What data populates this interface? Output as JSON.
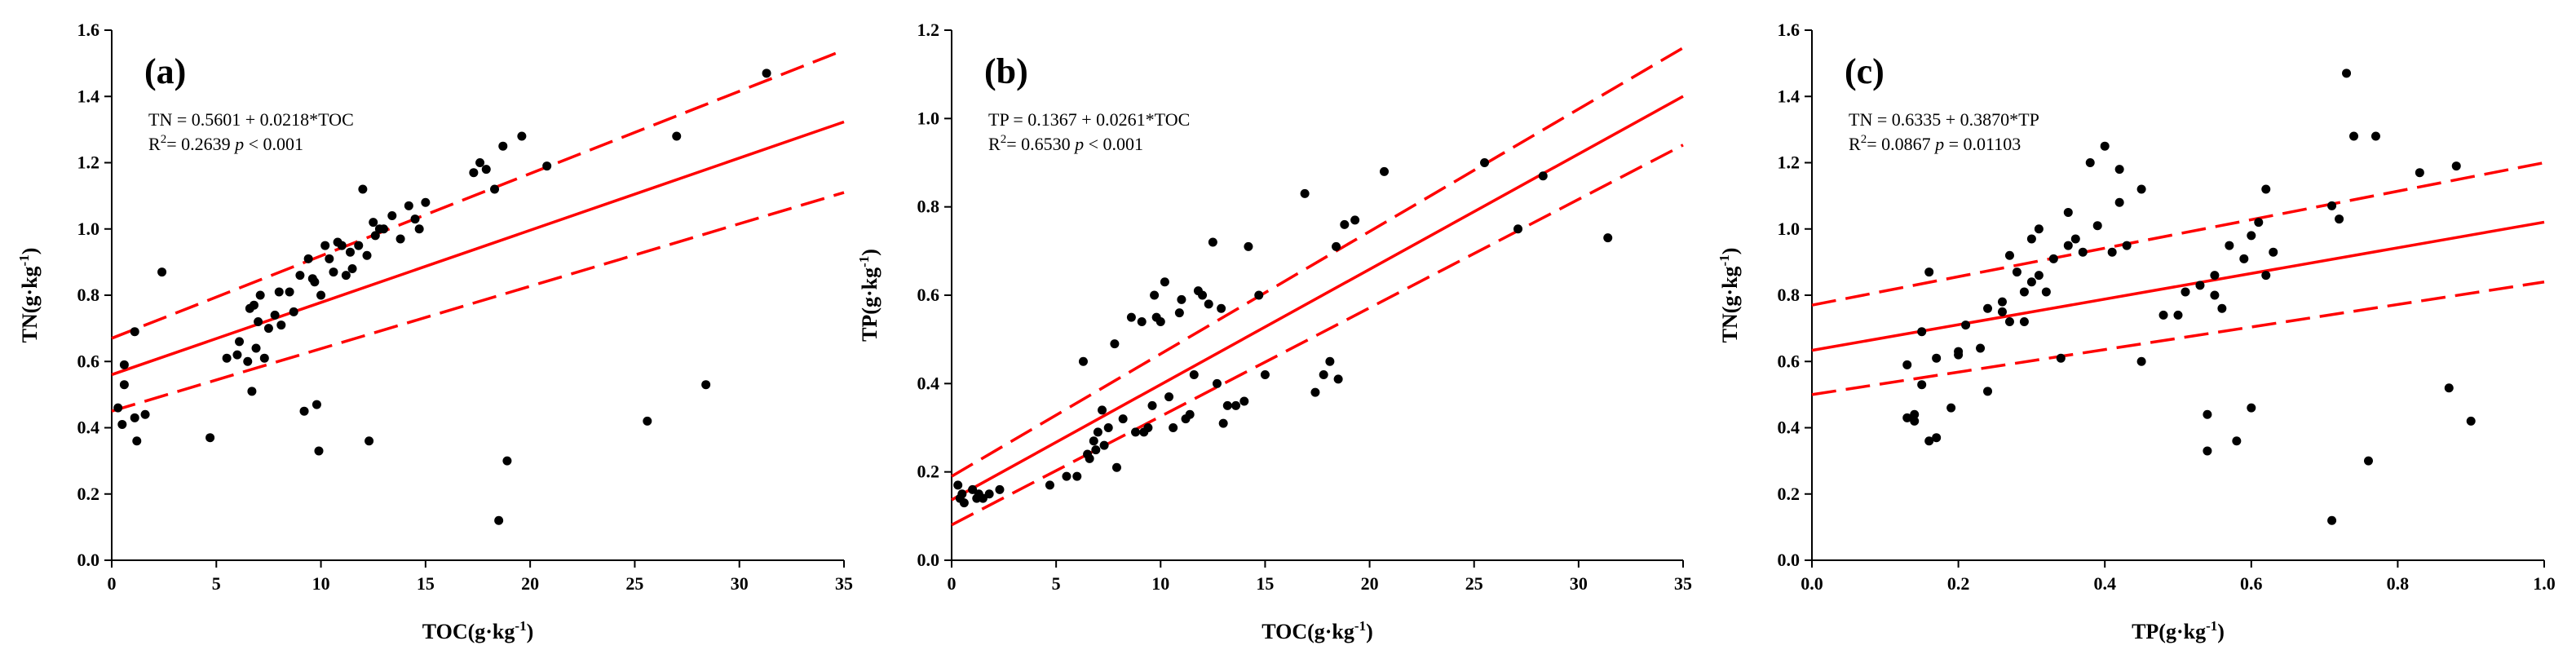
{
  "colors": {
    "fit": "#ff0000",
    "points": "#000000",
    "axes": "#000000"
  },
  "chart_data": [
    {
      "type": "scatter",
      "panel_label": "(a)",
      "equation": "TN = 0.5601 + 0.0218*TOC",
      "r2_prefix": "R",
      "r2_sup": "2",
      "r2_value": "= 0.2639",
      "p_symbol": "p",
      "p_value": "< 0.001",
      "xlabel": "TOC(g·kg",
      "ylabel": "TN(g·kg",
      "unit_sup": "-1",
      "xlim": [
        0,
        35
      ],
      "ylim": [
        0,
        1.6
      ],
      "xticks": [
        0,
        5,
        10,
        15,
        20,
        25,
        30,
        35
      ],
      "yticks": [
        0.0,
        0.2,
        0.4,
        0.6,
        0.8,
        1.0,
        1.2,
        1.4,
        1.6
      ],
      "xtick_labels": [
        "0",
        "5",
        "10",
        "15",
        "20",
        "25",
        "30",
        "35"
      ],
      "ytick_labels": [
        "0.0",
        "0.2",
        "0.4",
        "0.6",
        "0.8",
        "1.0",
        "1.2",
        "1.4",
        "1.6"
      ],
      "fit": {
        "intercept": 0.5601,
        "slope": 0.0218
      },
      "ci_upper": {
        "start": 0.67,
        "end": 1.54
      },
      "ci_lower": {
        "start": 0.45,
        "end": 1.11
      },
      "points": [
        [
          0.3,
          0.46
        ],
        [
          0.5,
          0.41
        ],
        [
          0.6,
          0.59
        ],
        [
          0.6,
          0.53
        ],
        [
          1.1,
          0.69
        ],
        [
          1.1,
          0.43
        ],
        [
          1.2,
          0.36
        ],
        [
          1.6,
          0.44
        ],
        [
          2.4,
          0.87
        ],
        [
          4.7,
          0.37
        ],
        [
          5.5,
          0.61
        ],
        [
          6.0,
          0.62
        ],
        [
          6.1,
          0.66
        ],
        [
          6.5,
          0.6
        ],
        [
          6.6,
          0.76
        ],
        [
          6.7,
          0.51
        ],
        [
          6.8,
          0.77
        ],
        [
          6.9,
          0.64
        ],
        [
          7.0,
          0.72
        ],
        [
          7.1,
          0.8
        ],
        [
          7.3,
          0.61
        ],
        [
          7.5,
          0.7
        ],
        [
          7.8,
          0.74
        ],
        [
          8.0,
          0.81
        ],
        [
          8.1,
          0.71
        ],
        [
          8.5,
          0.81
        ],
        [
          8.7,
          0.75
        ],
        [
          9.0,
          0.86
        ],
        [
          9.2,
          0.45
        ],
        [
          9.4,
          0.91
        ],
        [
          9.6,
          0.85
        ],
        [
          9.7,
          0.84
        ],
        [
          9.8,
          0.47
        ],
        [
          9.9,
          0.33
        ],
        [
          10.0,
          0.8
        ],
        [
          10.2,
          0.95
        ],
        [
          10.4,
          0.91
        ],
        [
          10.6,
          0.87
        ],
        [
          10.8,
          0.96
        ],
        [
          11.0,
          0.95
        ],
        [
          11.2,
          0.86
        ],
        [
          11.4,
          0.93
        ],
        [
          11.5,
          0.88
        ],
        [
          11.8,
          0.95
        ],
        [
          12.0,
          1.12
        ],
        [
          12.2,
          0.92
        ],
        [
          12.3,
          0.36
        ],
        [
          12.5,
          1.02
        ],
        [
          12.6,
          0.98
        ],
        [
          12.8,
          1.0
        ],
        [
          13.0,
          1.0
        ],
        [
          13.4,
          1.04
        ],
        [
          13.8,
          0.97
        ],
        [
          14.2,
          1.07
        ],
        [
          14.5,
          1.03
        ],
        [
          14.7,
          1.0
        ],
        [
          15.0,
          1.08
        ],
        [
          17.3,
          1.17
        ],
        [
          17.6,
          1.2
        ],
        [
          17.9,
          1.18
        ],
        [
          18.3,
          1.12
        ],
        [
          18.5,
          0.12
        ],
        [
          18.7,
          1.25
        ],
        [
          18.9,
          0.3
        ],
        [
          19.6,
          1.28
        ],
        [
          20.8,
          1.19
        ],
        [
          25.6,
          0.42
        ],
        [
          27.0,
          1.28
        ],
        [
          28.4,
          0.53
        ],
        [
          31.3,
          1.47
        ]
      ]
    },
    {
      "type": "scatter",
      "panel_label": "(b)",
      "equation": "TP = 0.1367 + 0.0261*TOC",
      "r2_prefix": "R",
      "r2_sup": "2",
      "r2_value": "= 0.6530",
      "p_symbol": "p",
      "p_value": "< 0.001",
      "xlabel": "TOC(g·kg",
      "ylabel": "TP(g·kg",
      "unit_sup": "-1",
      "xlim": [
        0,
        35
      ],
      "ylim": [
        0,
        1.2
      ],
      "xticks": [
        0,
        5,
        10,
        15,
        20,
        25,
        30,
        35
      ],
      "yticks": [
        0.0,
        0.2,
        0.4,
        0.6,
        0.8,
        1.0,
        1.2
      ],
      "xtick_labels": [
        "0",
        "5",
        "10",
        "15",
        "20",
        "25",
        "30",
        "35"
      ],
      "ytick_labels": [
        "0.0",
        "0.2",
        "0.4",
        "0.6",
        "0.8",
        "1.0",
        "1.2"
      ],
      "fit": {
        "intercept": 0.1367,
        "slope": 0.0261
      },
      "ci_upper": {
        "start": 0.19,
        "end": 1.16
      },
      "ci_lower": {
        "start": 0.08,
        "end": 0.94
      },
      "points": [
        [
          0.3,
          0.17
        ],
        [
          0.4,
          0.14
        ],
        [
          0.5,
          0.15
        ],
        [
          0.6,
          0.13
        ],
        [
          1.0,
          0.16
        ],
        [
          1.2,
          0.14
        ],
        [
          1.3,
          0.15
        ],
        [
          1.5,
          0.14
        ],
        [
          1.8,
          0.15
        ],
        [
          2.3,
          0.16
        ],
        [
          4.7,
          0.17
        ],
        [
          5.5,
          0.19
        ],
        [
          6.0,
          0.19
        ],
        [
          6.3,
          0.45
        ],
        [
          6.5,
          0.24
        ],
        [
          6.6,
          0.23
        ],
        [
          6.8,
          0.27
        ],
        [
          6.9,
          0.25
        ],
        [
          7.0,
          0.29
        ],
        [
          7.2,
          0.34
        ],
        [
          7.3,
          0.26
        ],
        [
          7.5,
          0.3
        ],
        [
          7.8,
          0.49
        ],
        [
          7.9,
          0.21
        ],
        [
          8.2,
          0.32
        ],
        [
          8.6,
          0.55
        ],
        [
          8.8,
          0.29
        ],
        [
          9.1,
          0.54
        ],
        [
          9.2,
          0.29
        ],
        [
          9.4,
          0.3
        ],
        [
          9.6,
          0.35
        ],
        [
          9.7,
          0.6
        ],
        [
          9.8,
          0.55
        ],
        [
          10.0,
          0.54
        ],
        [
          10.2,
          0.63
        ],
        [
          10.4,
          0.37
        ],
        [
          10.6,
          0.3
        ],
        [
          10.9,
          0.56
        ],
        [
          11.0,
          0.59
        ],
        [
          11.2,
          0.32
        ],
        [
          11.4,
          0.33
        ],
        [
          11.6,
          0.42
        ],
        [
          11.8,
          0.61
        ],
        [
          12.0,
          0.6
        ],
        [
          12.3,
          0.58
        ],
        [
          12.5,
          0.72
        ],
        [
          12.7,
          0.4
        ],
        [
          12.9,
          0.57
        ],
        [
          13.0,
          0.31
        ],
        [
          13.2,
          0.35
        ],
        [
          13.6,
          0.35
        ],
        [
          14.0,
          0.36
        ],
        [
          14.2,
          0.71
        ],
        [
          14.7,
          0.6
        ],
        [
          15.0,
          0.42
        ],
        [
          16.9,
          0.83
        ],
        [
          17.4,
          0.38
        ],
        [
          17.8,
          0.42
        ],
        [
          18.1,
          0.45
        ],
        [
          18.4,
          0.71
        ],
        [
          18.5,
          0.41
        ],
        [
          18.8,
          0.76
        ],
        [
          19.3,
          0.77
        ],
        [
          20.7,
          0.88
        ],
        [
          25.5,
          0.9
        ],
        [
          27.1,
          0.75
        ],
        [
          28.3,
          0.87
        ],
        [
          31.4,
          0.73
        ]
      ]
    },
    {
      "type": "scatter",
      "panel_label": "(c)",
      "equation": "TN = 0.6335 + 0.3870*TP",
      "r2_prefix": "R",
      "r2_sup": "2",
      "r2_value": "= 0.0867",
      "p_symbol": "p",
      "p_value": "= 0.01103",
      "xlabel": "TP(g·kg",
      "ylabel": "TN(g·kg",
      "unit_sup": "-1",
      "xlim": [
        0,
        1.0
      ],
      "ylim": [
        0,
        1.6
      ],
      "xticks": [
        0.0,
        0.2,
        0.4,
        0.6,
        0.8,
        1.0
      ],
      "yticks": [
        0.0,
        0.2,
        0.4,
        0.6,
        0.8,
        1.0,
        1.2,
        1.4,
        1.6
      ],
      "xtick_labels": [
        "0.0",
        "0.2",
        "0.4",
        "0.6",
        "0.8",
        "1.0"
      ],
      "ytick_labels": [
        "0.0",
        "0.2",
        "0.4",
        "0.6",
        "0.8",
        "1.0",
        "1.2",
        "1.4",
        "1.6"
      ],
      "fit": {
        "intercept": 0.6335,
        "slope": 0.387
      },
      "ci_upper": {
        "start": 0.77,
        "end": 1.2
      },
      "ci_lower": {
        "start": 0.5,
        "end": 0.84
      },
      "points": [
        [
          0.13,
          0.43
        ],
        [
          0.13,
          0.59
        ],
        [
          0.14,
          0.42
        ],
        [
          0.14,
          0.44
        ],
        [
          0.15,
          0.69
        ],
        [
          0.15,
          0.53
        ],
        [
          0.16,
          0.87
        ],
        [
          0.16,
          0.36
        ],
        [
          0.17,
          0.37
        ],
        [
          0.17,
          0.61
        ],
        [
          0.19,
          0.46
        ],
        [
          0.2,
          0.62
        ],
        [
          0.2,
          0.63
        ],
        [
          0.21,
          0.71
        ],
        [
          0.23,
          0.64
        ],
        [
          0.24,
          0.76
        ],
        [
          0.24,
          0.51
        ],
        [
          0.26,
          0.78
        ],
        [
          0.26,
          0.75
        ],
        [
          0.27,
          0.72
        ],
        [
          0.27,
          0.92
        ],
        [
          0.28,
          0.87
        ],
        [
          0.29,
          0.72
        ],
        [
          0.29,
          0.81
        ],
        [
          0.3,
          0.84
        ],
        [
          0.3,
          0.97
        ],
        [
          0.31,
          0.86
        ],
        [
          0.31,
          1.0
        ],
        [
          0.32,
          0.81
        ],
        [
          0.33,
          0.91
        ],
        [
          0.34,
          0.61
        ],
        [
          0.35,
          0.95
        ],
        [
          0.35,
          1.05
        ],
        [
          0.36,
          0.97
        ],
        [
          0.37,
          0.93
        ],
        [
          0.38,
          1.2
        ],
        [
          0.39,
          1.01
        ],
        [
          0.4,
          1.25
        ],
        [
          0.41,
          0.93
        ],
        [
          0.42,
          1.08
        ],
        [
          0.42,
          1.18
        ],
        [
          0.43,
          0.95
        ],
        [
          0.45,
          1.12
        ],
        [
          0.45,
          0.6
        ],
        [
          0.48,
          0.74
        ],
        [
          0.5,
          0.74
        ],
        [
          0.51,
          0.81
        ],
        [
          0.53,
          0.83
        ],
        [
          0.54,
          0.33
        ],
        [
          0.54,
          0.44
        ],
        [
          0.55,
          0.86
        ],
        [
          0.55,
          0.8
        ],
        [
          0.56,
          0.76
        ],
        [
          0.57,
          0.95
        ],
        [
          0.58,
          0.36
        ],
        [
          0.59,
          0.91
        ],
        [
          0.6,
          0.98
        ],
        [
          0.6,
          0.46
        ],
        [
          0.61,
          1.02
        ],
        [
          0.62,
          0.86
        ],
        [
          0.62,
          1.12
        ],
        [
          0.63,
          0.93
        ],
        [
          0.71,
          0.12
        ],
        [
          0.71,
          1.07
        ],
        [
          0.72,
          1.03
        ],
        [
          0.73,
          1.47
        ],
        [
          0.74,
          1.28
        ],
        [
          0.76,
          0.3
        ],
        [
          0.77,
          1.28
        ],
        [
          0.83,
          1.17
        ],
        [
          0.87,
          0.52
        ],
        [
          0.88,
          1.19
        ],
        [
          0.9,
          0.42
        ]
      ]
    }
  ]
}
